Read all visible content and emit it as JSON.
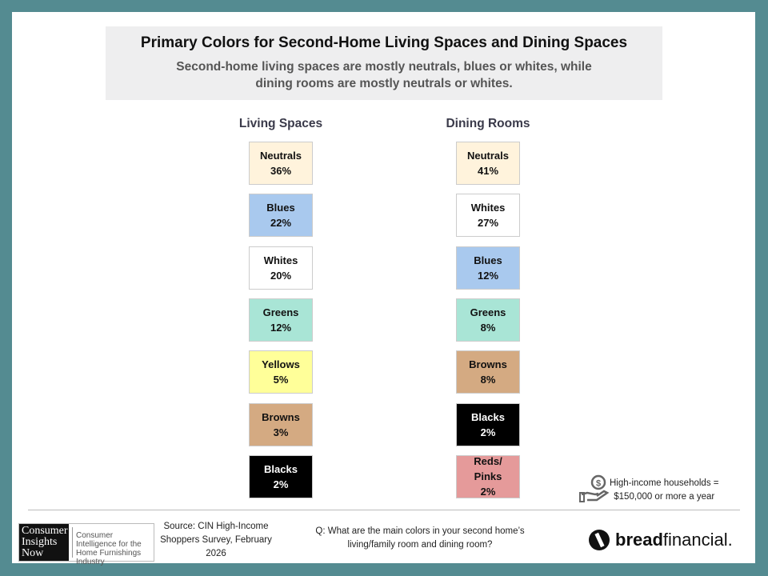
{
  "title": "Primary Colors for Second-Home Living Spaces and Dining Spaces",
  "subtitle_line1": "Second-home living spaces are mostly neutrals, blues or whites, while",
  "subtitle_line2": "dining rooms are mostly neutrals or whites.",
  "living": {
    "heading": "Living Spaces",
    "items": [
      {
        "label": "Neutrals",
        "value": "36%",
        "color": "#fff3dc"
      },
      {
        "label": "Blues",
        "value": "22%",
        "color": "#a9c9ee"
      },
      {
        "label": "Whites",
        "value": "20%",
        "color": "#ffffff"
      },
      {
        "label": "Greens",
        "value": "12%",
        "color": "#a9e5d6"
      },
      {
        "label": "Yellows",
        "value": "5%",
        "color": "#ffff99"
      },
      {
        "label": "Browns",
        "value": "3%",
        "color": "#d4aa82"
      },
      {
        "label": "Blacks",
        "value": "2%",
        "color": "#000000"
      }
    ]
  },
  "dining": {
    "heading": "Dining Rooms",
    "items": [
      {
        "label": "Neutrals",
        "value": "41%",
        "color": "#fff3dc"
      },
      {
        "label": "Whites",
        "value": "27%",
        "color": "#ffffff"
      },
      {
        "label": "Blues",
        "value": "12%",
        "color": "#a9c9ee"
      },
      {
        "label": "Greens",
        "value": "8%",
        "color": "#a9e5d6"
      },
      {
        "label": "Browns",
        "value": "8%",
        "color": "#d4aa82"
      },
      {
        "label": "Blacks",
        "value": "2%",
        "color": "#000000"
      },
      {
        "label": "Reds/ Pinks",
        "value": "2%",
        "color": "#e59a9a"
      }
    ]
  },
  "note_line1": "High-income households =",
  "note_line2": "$150,000 or more a year",
  "source": "Source: CIN High-Income Shoppers Survey, February 2026",
  "question": "Q: What are the main colors in your second home’s living/family room and dining room?",
  "logo": {
    "dark": "Consumer Insights Now",
    "text": "Consumer Intelligence for the Home Furnishings Industry"
  },
  "brand": {
    "bold": "bread",
    "light": "financial."
  }
}
